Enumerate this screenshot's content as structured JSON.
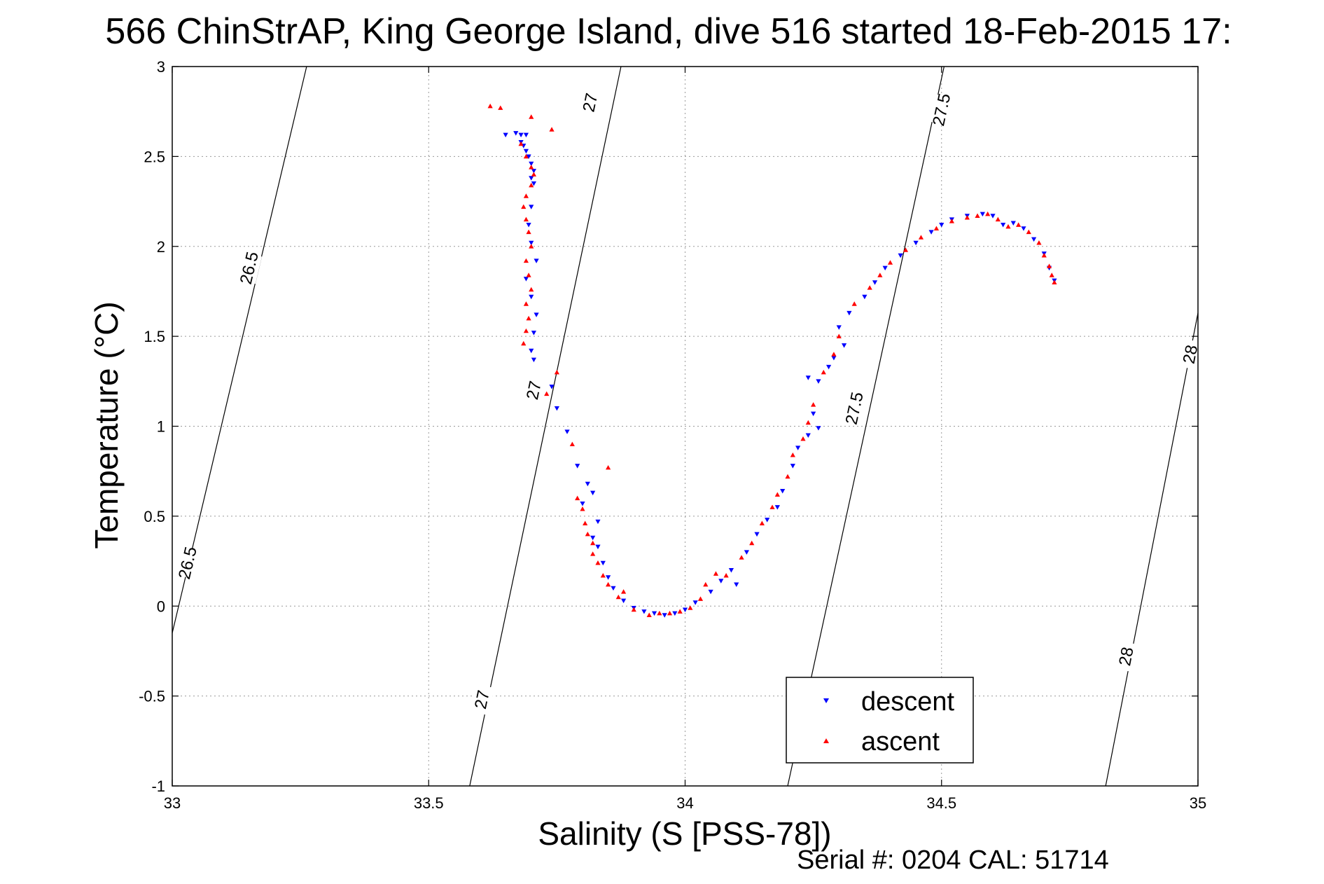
{
  "chart_data": {
    "type": "scatter",
    "title": "566 ChinStrAP, King George Island, dive 516 started 18-Feb-2015 17:",
    "xlabel": "Salinity (S [PSS-78])",
    "ylabel": "Temperature (°C)",
    "xlim": [
      33,
      35
    ],
    "ylim": [
      -1,
      3
    ],
    "xticks": [
      "33",
      "33.5",
      "34",
      "34.5",
      "35"
    ],
    "yticks": [
      "-1",
      "-0.5",
      "0",
      "0.5",
      "1",
      "1.5",
      "2",
      "2.5",
      "3"
    ],
    "grid": true,
    "legend_position": "bottom-right",
    "footer": "Serial #: 0204  CAL: 51714",
    "density_contours": [
      {
        "label": "26.5",
        "x": [
          33.0,
          33.262
        ],
        "y": [
          -0.15,
          3.0
        ],
        "label_points": [
          [
            33.15,
            1.88
          ],
          [
            33.03,
            0.24
          ]
        ]
      },
      {
        "label": "27",
        "x": [
          33.58,
          33.875
        ],
        "y": [
          -1.0,
          3.0
        ],
        "label_points": [
          [
            33.815,
            2.8
          ],
          [
            33.705,
            1.2
          ],
          [
            33.604,
            -0.52
          ]
        ]
      },
      {
        "label": "27.5",
        "x": [
          34.2,
          34.505
        ],
        "y": [
          -1.0,
          3.0
        ],
        "label_points": [
          [
            34.5,
            2.76
          ],
          [
            34.33,
            1.1
          ]
        ]
      },
      {
        "label": "28",
        "x": [
          34.82,
          35.0
        ],
        "y": [
          -1.0,
          1.63
        ],
        "label_points": [
          [
            34.985,
            1.4
          ],
          [
            34.86,
            -0.28
          ]
        ]
      }
    ],
    "series": [
      {
        "name": "descent",
        "color": "#0000ff",
        "marker": "triangle-down",
        "points": [
          [
            33.65,
            2.62
          ],
          [
            33.67,
            2.63
          ],
          [
            33.68,
            2.62
          ],
          [
            33.69,
            2.62
          ],
          [
            33.68,
            2.58
          ],
          [
            33.685,
            2.56
          ],
          [
            33.69,
            2.53
          ],
          [
            33.695,
            2.5
          ],
          [
            33.7,
            2.46
          ],
          [
            33.705,
            2.42
          ],
          [
            33.7,
            2.38
          ],
          [
            33.705,
            2.35
          ],
          [
            33.7,
            2.22
          ],
          [
            33.695,
            2.12
          ],
          [
            33.7,
            2.02
          ],
          [
            33.71,
            1.92
          ],
          [
            33.69,
            1.82
          ],
          [
            33.7,
            1.72
          ],
          [
            33.71,
            1.62
          ],
          [
            33.705,
            1.52
          ],
          [
            33.7,
            1.42
          ],
          [
            33.705,
            1.37
          ],
          [
            33.74,
            1.22
          ],
          [
            33.75,
            1.1
          ],
          [
            33.77,
            0.97
          ],
          [
            33.79,
            0.78
          ],
          [
            33.81,
            0.68
          ],
          [
            33.82,
            0.63
          ],
          [
            33.8,
            0.57
          ],
          [
            33.83,
            0.47
          ],
          [
            33.82,
            0.38
          ],
          [
            33.83,
            0.33
          ],
          [
            33.84,
            0.24
          ],
          [
            33.85,
            0.16
          ],
          [
            33.86,
            0.1
          ],
          [
            33.88,
            0.03
          ],
          [
            33.9,
            -0.01
          ],
          [
            33.92,
            -0.03
          ],
          [
            33.94,
            -0.04
          ],
          [
            33.96,
            -0.05
          ],
          [
            33.98,
            -0.04
          ],
          [
            34.0,
            -0.02
          ],
          [
            34.02,
            0.02
          ],
          [
            34.05,
            0.08
          ],
          [
            34.07,
            0.14
          ],
          [
            34.09,
            0.2
          ],
          [
            34.1,
            0.12
          ],
          [
            34.12,
            0.3
          ],
          [
            34.14,
            0.4
          ],
          [
            34.16,
            0.48
          ],
          [
            34.18,
            0.55
          ],
          [
            34.19,
            0.64
          ],
          [
            34.21,
            0.78
          ],
          [
            34.22,
            0.88
          ],
          [
            34.24,
            0.95
          ],
          [
            34.25,
            1.07
          ],
          [
            34.26,
            0.99
          ],
          [
            34.24,
            1.27
          ],
          [
            34.26,
            1.25
          ],
          [
            34.28,
            1.33
          ],
          [
            34.29,
            1.38
          ],
          [
            34.31,
            1.45
          ],
          [
            34.3,
            1.55
          ],
          [
            34.32,
            1.63
          ],
          [
            34.35,
            1.72
          ],
          [
            34.37,
            1.8
          ],
          [
            34.39,
            1.88
          ],
          [
            34.42,
            1.95
          ],
          [
            34.45,
            2.02
          ],
          [
            34.48,
            2.08
          ],
          [
            34.5,
            2.12
          ],
          [
            34.52,
            2.15
          ],
          [
            34.55,
            2.17
          ],
          [
            34.58,
            2.18
          ],
          [
            34.6,
            2.17
          ],
          [
            34.62,
            2.12
          ],
          [
            34.64,
            2.13
          ],
          [
            34.66,
            2.1
          ],
          [
            34.68,
            2.04
          ],
          [
            34.7,
            1.96
          ],
          [
            34.71,
            1.88
          ],
          [
            34.72,
            1.81
          ]
        ]
      },
      {
        "name": "ascent",
        "color": "#ff0000",
        "marker": "triangle-up",
        "points": [
          [
            33.62,
            2.78
          ],
          [
            33.64,
            2.77
          ],
          [
            33.7,
            2.72
          ],
          [
            33.74,
            2.65
          ],
          [
            33.68,
            2.57
          ],
          [
            33.69,
            2.5
          ],
          [
            33.7,
            2.44
          ],
          [
            33.705,
            2.4
          ],
          [
            33.7,
            2.34
          ],
          [
            33.69,
            2.28
          ],
          [
            33.685,
            2.22
          ],
          [
            33.69,
            2.15
          ],
          [
            33.695,
            2.08
          ],
          [
            33.7,
            2.0
          ],
          [
            33.69,
            1.92
          ],
          [
            33.695,
            1.84
          ],
          [
            33.7,
            1.76
          ],
          [
            33.69,
            1.68
          ],
          [
            33.695,
            1.6
          ],
          [
            33.69,
            1.53
          ],
          [
            33.685,
            1.46
          ],
          [
            33.75,
            1.3
          ],
          [
            33.73,
            1.18
          ],
          [
            33.78,
            0.9
          ],
          [
            33.85,
            0.77
          ],
          [
            33.79,
            0.6
          ],
          [
            33.8,
            0.54
          ],
          [
            33.805,
            0.46
          ],
          [
            33.81,
            0.4
          ],
          [
            33.82,
            0.35
          ],
          [
            33.82,
            0.29
          ],
          [
            33.83,
            0.24
          ],
          [
            33.84,
            0.17
          ],
          [
            33.85,
            0.12
          ],
          [
            33.87,
            0.05
          ],
          [
            33.88,
            0.08
          ],
          [
            33.9,
            -0.02
          ],
          [
            33.93,
            -0.05
          ],
          [
            33.95,
            -0.04
          ],
          [
            33.97,
            -0.04
          ],
          [
            33.99,
            -0.03
          ],
          [
            34.01,
            -0.01
          ],
          [
            34.03,
            0.04
          ],
          [
            34.04,
            0.12
          ],
          [
            34.06,
            0.18
          ],
          [
            34.08,
            0.17
          ],
          [
            34.11,
            0.27
          ],
          [
            34.13,
            0.35
          ],
          [
            34.15,
            0.46
          ],
          [
            34.17,
            0.55
          ],
          [
            34.18,
            0.62
          ],
          [
            34.2,
            0.72
          ],
          [
            34.21,
            0.84
          ],
          [
            34.23,
            0.93
          ],
          [
            34.24,
            1.02
          ],
          [
            34.25,
            1.12
          ],
          [
            34.27,
            1.3
          ],
          [
            34.29,
            1.4
          ],
          [
            34.3,
            1.5
          ],
          [
            34.33,
            1.68
          ],
          [
            34.36,
            1.77
          ],
          [
            34.38,
            1.84
          ],
          [
            34.4,
            1.91
          ],
          [
            34.43,
            1.98
          ],
          [
            34.46,
            2.05
          ],
          [
            34.49,
            2.1
          ],
          [
            34.52,
            2.14
          ],
          [
            34.55,
            2.16
          ],
          [
            34.57,
            2.17
          ],
          [
            34.59,
            2.18
          ],
          [
            34.61,
            2.15
          ],
          [
            34.63,
            2.11
          ],
          [
            34.65,
            2.12
          ],
          [
            34.67,
            2.08
          ],
          [
            34.69,
            2.02
          ],
          [
            34.7,
            1.95
          ],
          [
            34.71,
            1.89
          ],
          [
            34.715,
            1.84
          ],
          [
            34.72,
            1.8
          ]
        ]
      }
    ]
  }
}
